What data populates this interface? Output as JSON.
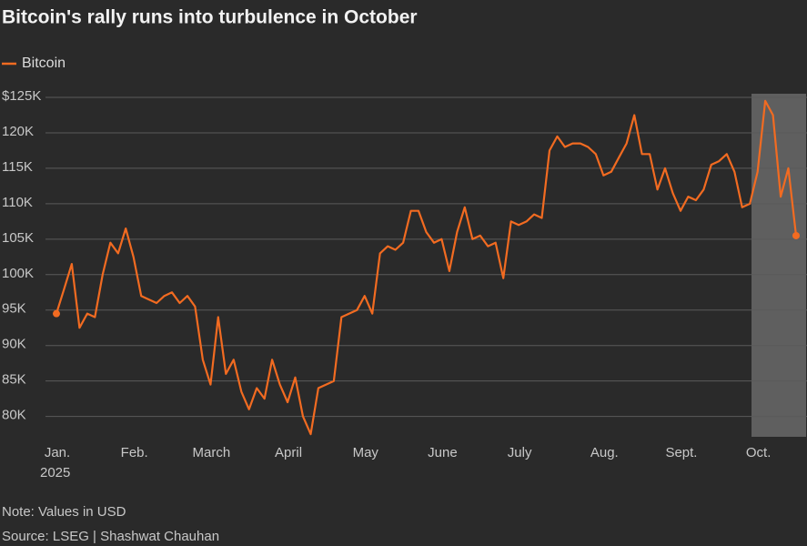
{
  "chart_data": {
    "type": "line",
    "title": "Bitcoin's rally runs into turbulence in October",
    "note": "Note: Values in USD",
    "source": "Source: LSEG | Shashwat Chauhan",
    "year_label": "2025",
    "categories": [
      "Jan.",
      null,
      null,
      null,
      null,
      null,
      null,
      null,
      null,
      null,
      "Feb.",
      null,
      null,
      null,
      null,
      null,
      null,
      null,
      null,
      null,
      "March",
      null,
      null,
      null,
      null,
      null,
      null,
      null,
      null,
      null,
      "April",
      null,
      null,
      null,
      null,
      null,
      null,
      null,
      null,
      null,
      "May",
      null,
      null,
      null,
      null,
      null,
      null,
      null,
      null,
      null,
      "June",
      null,
      null,
      null,
      null,
      null,
      null,
      null,
      null,
      null,
      "July",
      null,
      null,
      null,
      null,
      null,
      null,
      null,
      null,
      null,
      null,
      "Aug.",
      null,
      null,
      null,
      null,
      null,
      null,
      null,
      null,
      null,
      "Sept.",
      null,
      null,
      null,
      null,
      null,
      null,
      null,
      null,
      null,
      "Oct.",
      null,
      null,
      null,
      null,
      null
    ],
    "series": [
      {
        "name": "Bitcoin",
        "color": "#f26b21",
        "values": [
          94500,
          98000,
          101500,
          92500,
          94500,
          94000,
          100000,
          104500,
          103000,
          106500,
          102500,
          97000,
          96500,
          96000,
          97000,
          97500,
          96000,
          97000,
          95500,
          88000,
          84500,
          94000,
          86000,
          88000,
          83500,
          81000,
          84000,
          82500,
          88000,
          84500,
          82000,
          85500,
          80000,
          77500,
          84000,
          84500,
          85000,
          94000,
          94500,
          95000,
          97000,
          94500,
          103000,
          104000,
          103500,
          104500,
          109000,
          109000,
          106000,
          104500,
          105000,
          100500,
          106000,
          109500,
          105000,
          105500,
          104000,
          104500,
          99500,
          107500,
          107000,
          107500,
          108500,
          108000,
          117500,
          119500,
          118000,
          118500,
          118500,
          118000,
          117000,
          114000,
          114500,
          116500,
          118500,
          122500,
          117000,
          117000,
          112000,
          115000,
          111500,
          109000,
          111000,
          110500,
          112000,
          115500,
          116000,
          117000,
          114500,
          109500,
          110000,
          114500,
          124500,
          122500,
          111000,
          115000,
          105500
        ]
      }
    ],
    "ylim": [
      77000,
      125000
    ],
    "yticks": [
      {
        "value": 80000,
        "label": "80K"
      },
      {
        "value": 85000,
        "label": "85K"
      },
      {
        "value": 90000,
        "label": "90K"
      },
      {
        "value": 95000,
        "label": "95K"
      },
      {
        "value": 100000,
        "label": "100K"
      },
      {
        "value": 105000,
        "label": "105K"
      },
      {
        "value": 110000,
        "label": "110K"
      },
      {
        "value": 115000,
        "label": "115K"
      },
      {
        "value": 120000,
        "label": "120K"
      },
      {
        "value": 125000,
        "label": "$125K"
      }
    ],
    "grid": true
  }
}
